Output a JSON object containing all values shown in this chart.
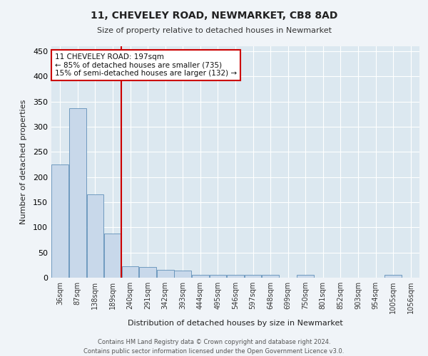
{
  "title_line1": "11, CHEVELEY ROAD, NEWMARKET, CB8 8AD",
  "title_line2": "Size of property relative to detached houses in Newmarket",
  "xlabel": "Distribution of detached houses by size in Newmarket",
  "ylabel": "Number of detached properties",
  "categories": [
    "36sqm",
    "87sqm",
    "138sqm",
    "189sqm",
    "240sqm",
    "291sqm",
    "342sqm",
    "393sqm",
    "444sqm",
    "495sqm",
    "546sqm",
    "597sqm",
    "648sqm",
    "699sqm",
    "750sqm",
    "801sqm",
    "852sqm",
    "903sqm",
    "954sqm",
    "1005sqm",
    "1056sqm"
  ],
  "values": [
    225,
    337,
    165,
    88,
    22,
    21,
    16,
    14,
    6,
    6,
    5,
    5,
    5,
    0,
    5,
    0,
    0,
    0,
    0,
    5,
    0
  ],
  "bar_color": "#c8d8ea",
  "bar_edge_color": "#6090b8",
  "vline_x_index": 3,
  "vline_color": "#cc0000",
  "annotation_text": "11 CHEVELEY ROAD: 197sqm\n← 85% of detached houses are smaller (735)\n15% of semi-detached houses are larger (132) →",
  "annotation_box_color": "#ffffff",
  "annotation_box_edge": "#cc0000",
  "ylim": [
    0,
    460
  ],
  "yticks": [
    0,
    50,
    100,
    150,
    200,
    250,
    300,
    350,
    400,
    450
  ],
  "background_color": "#dce8f0",
  "grid_color": "#ffffff",
  "footer_line1": "Contains HM Land Registry data © Crown copyright and database right 2024.",
  "footer_line2": "Contains public sector information licensed under the Open Government Licence v3.0."
}
